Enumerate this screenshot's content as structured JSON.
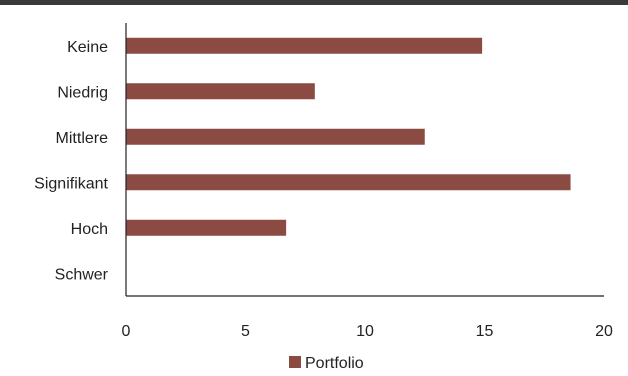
{
  "chart_data": {
    "type": "bar",
    "orientation": "horizontal",
    "categories": [
      "Keine",
      "Niedrig",
      "Mittlere",
      "Signifikant",
      "Hoch",
      "Schwer"
    ],
    "series": [
      {
        "name": "Portfolio",
        "values": [
          14.9,
          7.9,
          12.5,
          18.6,
          6.7,
          0
        ],
        "color": "#8b4a42"
      }
    ],
    "xlim": [
      0,
      20
    ],
    "xticks": [
      "0",
      "5",
      "10",
      "15",
      "20"
    ],
    "grid": false,
    "legend_position": "bottom"
  },
  "colors": {
    "top_rule": "#3a3a3a",
    "axis": "#222222",
    "bar": "#8b4a42"
  }
}
